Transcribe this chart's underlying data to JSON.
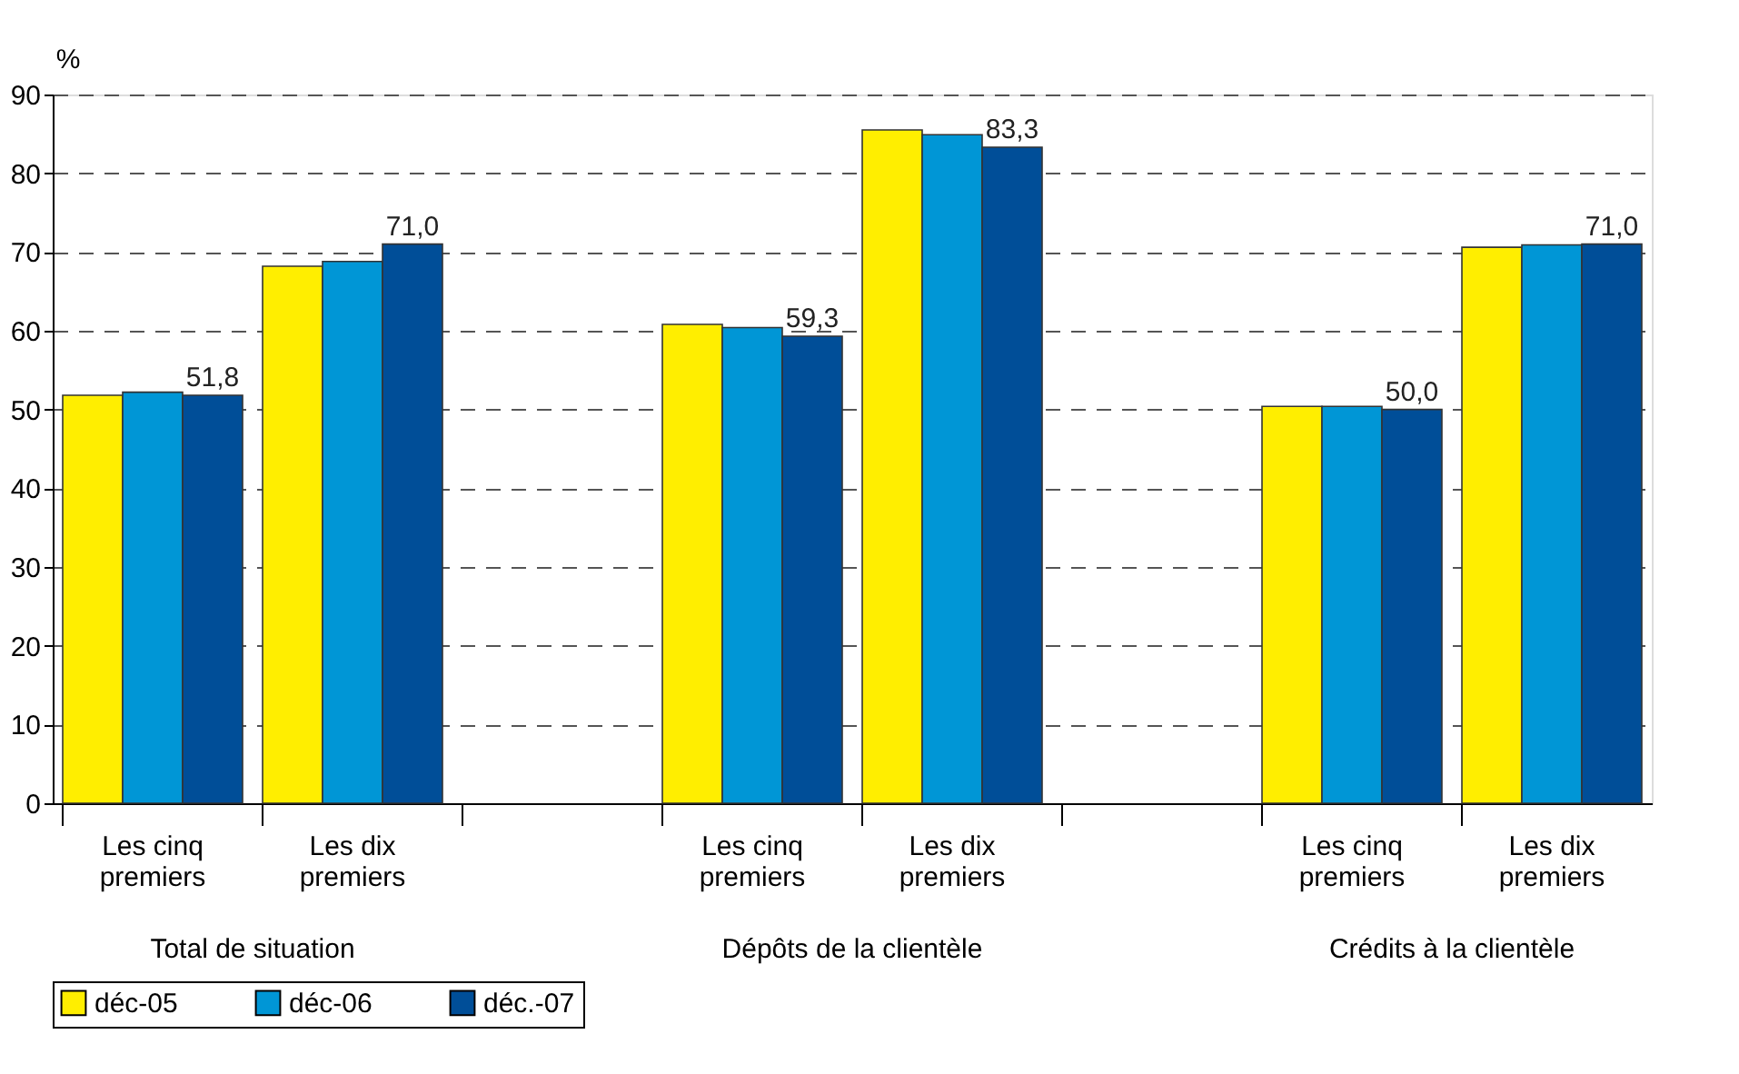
{
  "chart_data": {
    "type": "bar",
    "ylabel": "%",
    "categories": [
      "Les cinq premiers",
      "Les dix premiers",
      null,
      "Les cinq premiers",
      "Les dix premiers",
      null,
      "Les cinq premiers",
      "Les dix premiers"
    ],
    "series": [
      {
        "name": "déc-05",
        "color": "#ffee00",
        "values": [
          51.8,
          68.2,
          null,
          60.8,
          85.5,
          null,
          50.4,
          70.6
        ]
      },
      {
        "name": "déc-06",
        "color": "#0096d6",
        "values": [
          52.2,
          68.8,
          null,
          60.4,
          84.9,
          null,
          50.4,
          70.9
        ]
      },
      {
        "name": "déc.-07",
        "color": "#004e98",
        "values": [
          51.8,
          71.0,
          null,
          59.3,
          83.3,
          null,
          50.0,
          71.0
        ],
        "value_labels": [
          "51,8",
          "71,0",
          null,
          "59,3",
          "83,3",
          null,
          "50,0",
          "71,0"
        ]
      }
    ],
    "annotations": [
      "Total de situation",
      "Dépôts de la clientèle",
      "Crédits à la clientèle"
    ],
    "ylim": [
      0,
      90
    ],
    "yticks": [
      0,
      10,
      20,
      30,
      40,
      50,
      60,
      70,
      80,
      90
    ],
    "grid": "y",
    "legend": "bottom"
  }
}
